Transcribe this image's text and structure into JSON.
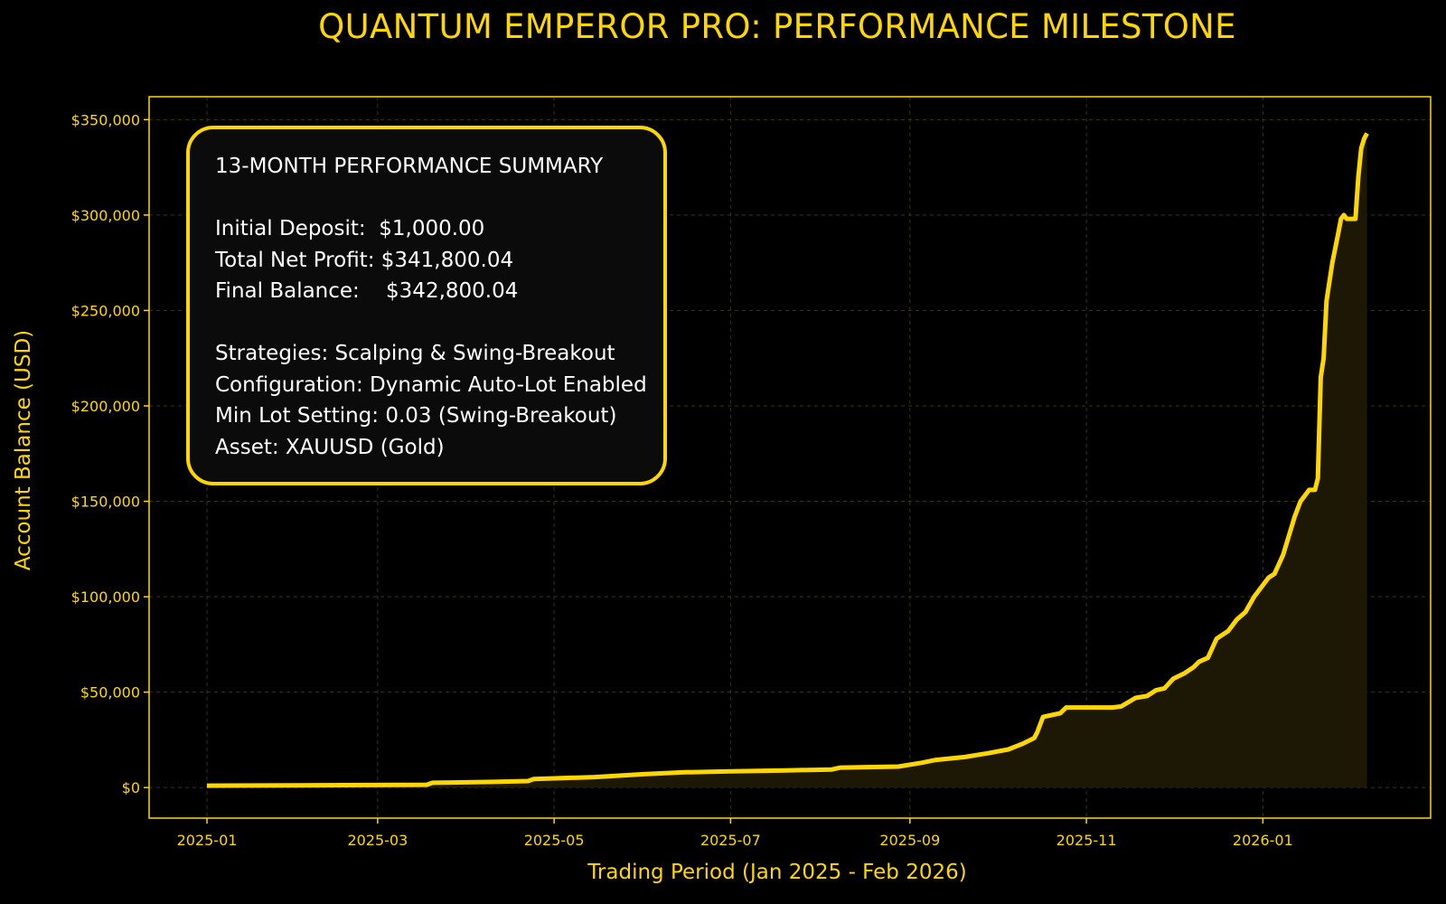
{
  "chart_data": {
    "type": "area",
    "title": "QUANTUM EMPEROR PRO: PERFORMANCE MILESTONE",
    "xlabel": "Trading Period (Jan 2025 - Feb 2026)",
    "ylabel": "Account Balance (USD)",
    "xlim": [
      "2024-12-12",
      "2026-02-28"
    ],
    "ylim": [
      -16000,
      362000
    ],
    "x_ticks": [
      {
        "date": "2025-01-01",
        "label": "2025-01"
      },
      {
        "date": "2025-03-01",
        "label": "2025-03"
      },
      {
        "date": "2025-05-01",
        "label": "2025-05"
      },
      {
        "date": "2025-07-01",
        "label": "2025-07"
      },
      {
        "date": "2025-09-01",
        "label": "2025-09"
      },
      {
        "date": "2025-11-01",
        "label": "2025-11"
      },
      {
        "date": "2026-01-01",
        "label": "2026-01"
      }
    ],
    "y_ticks": [
      {
        "value": 0,
        "label": "$0"
      },
      {
        "value": 50000,
        "label": "$50,000"
      },
      {
        "value": 100000,
        "label": "$100,000"
      },
      {
        "value": 150000,
        "label": "$150,000"
      },
      {
        "value": 200000,
        "label": "$200,000"
      },
      {
        "value": 250000,
        "label": "$250,000"
      },
      {
        "value": 300000,
        "label": "$300,000"
      },
      {
        "value": 350000,
        "label": "$350,000"
      }
    ],
    "grid": true,
    "line_color": "#FFD700",
    "fill_color": "#1d1806",
    "series": [
      {
        "x": [
          "2025-01-01",
          "2025-02-01",
          "2025-03-18",
          "2025-03-20",
          "2025-04-10",
          "2025-04-22",
          "2025-04-24",
          "2025-05-15",
          "2025-06-01",
          "2025-06-15",
          "2025-07-01",
          "2025-07-20",
          "2025-08-05",
          "2025-08-08",
          "2025-08-28",
          "2025-09-05",
          "2025-09-10",
          "2025-09-20",
          "2025-09-28",
          "2025-10-05",
          "2025-10-10",
          "2025-10-14",
          "2025-10-15",
          "2025-10-17",
          "2025-10-20",
          "2025-10-23",
          "2025-10-25",
          "2025-11-08",
          "2025-11-10",
          "2025-11-13",
          "2025-11-18",
          "2025-11-22",
          "2025-11-25",
          "2025-11-28",
          "2025-12-01",
          "2025-12-05",
          "2025-12-08",
          "2025-12-10",
          "2025-12-13",
          "2025-12-16",
          "2025-12-20",
          "2025-12-23",
          "2025-12-26",
          "2025-12-29",
          "2026-01-01",
          "2026-01-03",
          "2026-01-05",
          "2026-01-08",
          "2026-01-10",
          "2026-01-12",
          "2026-01-14",
          "2026-01-17",
          "2026-01-19",
          "2026-01-20",
          "2026-01-21",
          "2026-01-22",
          "2026-01-23",
          "2026-01-25",
          "2026-01-27",
          "2026-01-28",
          "2026-01-29",
          "2026-01-30",
          "2026-02-02",
          "2026-02-03",
          "2026-02-04",
          "2026-02-05",
          "2026-02-06"
        ],
        "y": [
          1000,
          1200,
          1500,
          2500,
          3000,
          3400,
          4500,
          5500,
          7000,
          8000,
          8500,
          9000,
          9500,
          10500,
          11000,
          13000,
          14500,
          16000,
          18000,
          20000,
          23000,
          26000,
          29000,
          37000,
          38000,
          39000,
          42000,
          42000,
          42000,
          42500,
          47000,
          48000,
          51000,
          52000,
          57000,
          60000,
          63000,
          66000,
          68000,
          78000,
          82000,
          88000,
          92000,
          100000,
          106000,
          110000,
          112000,
          122000,
          132000,
          142000,
          150000,
          156000,
          156000,
          162000,
          215000,
          225000,
          255000,
          275000,
          290000,
          298000,
          300000,
          298000,
          298000,
          320000,
          335000,
          340000,
          342800
        ]
      }
    ]
  },
  "summary": {
    "heading": "13-MONTH PERFORMANCE SUMMARY",
    "initial_deposit": "Initial Deposit:  $1,000.00",
    "total_net_profit": "Total Net Profit: $341,800.04",
    "final_balance": "Final Balance:    $342,800.04",
    "strategies": "Strategies: Scalping & Swing-Breakout",
    "configuration": "Configuration: Dynamic Auto-Lot Enabled",
    "min_lot": "Min Lot Setting: 0.03 (Swing-Breakout)",
    "asset": "Asset: XAUUSD (Gold)"
  }
}
